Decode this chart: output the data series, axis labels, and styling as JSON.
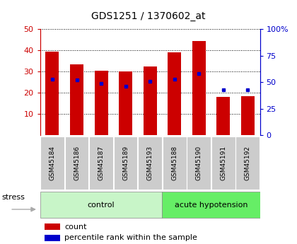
{
  "title": "GDS1251 / 1370602_at",
  "samples": [
    "GSM45184",
    "GSM45186",
    "GSM45187",
    "GSM45189",
    "GSM45193",
    "GSM45188",
    "GSM45190",
    "GSM45191",
    "GSM45192"
  ],
  "red_values": [
    39.5,
    33.5,
    30.5,
    30.0,
    32.5,
    39.0,
    44.5,
    18.0,
    18.5
  ],
  "blue_values_left": [
    26.5,
    26.0,
    24.5,
    23.0,
    25.5,
    26.5,
    29.0,
    21.5,
    21.5
  ],
  "groups": [
    {
      "label": "control",
      "start": 0,
      "end": 5,
      "color": "#c8f5c8"
    },
    {
      "label": "acute hypotension",
      "start": 5,
      "end": 9,
      "color": "#66ee66"
    }
  ],
  "ylim_left": [
    0,
    50
  ],
  "ylim_right": [
    0,
    100
  ],
  "yticks_left": [
    10,
    20,
    30,
    40,
    50
  ],
  "yticks_right": [
    0,
    25,
    50,
    75,
    100
  ],
  "ytick_labels_right": [
    "0",
    "25",
    "50",
    "75",
    "100%"
  ],
  "left_axis_color": "#cc0000",
  "right_axis_color": "#0000cc",
  "bar_color": "#cc0000",
  "dot_color": "#0000cc",
  "bar_width": 0.55,
  "bg_color": "#ffffff",
  "grid_color": "#000000",
  "stress_label": "stress",
  "stress_arrow_color": "#aaaaaa",
  "sample_box_color": "#cccccc",
  "n_samples": 9,
  "n_control": 5
}
